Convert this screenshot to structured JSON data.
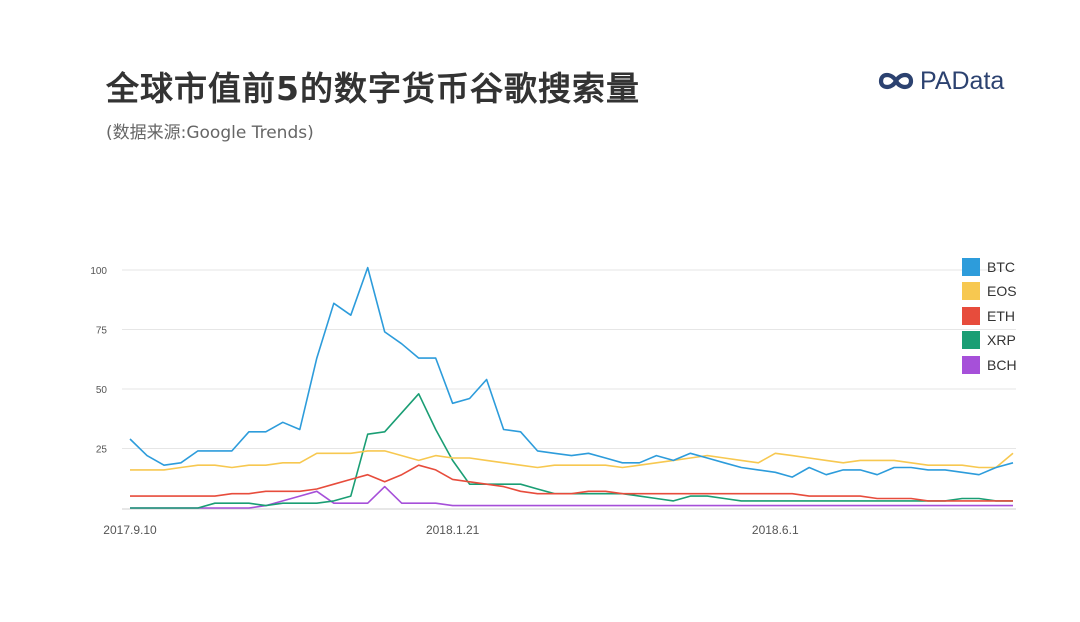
{
  "title": "全球市值前5的数字货币谷歌搜索量",
  "subtitle": "(数据来源:Google Trends)",
  "brand": {
    "name": "PAData",
    "color": "#2c4270"
  },
  "chart_data": {
    "type": "line",
    "title": "",
    "xlabel": "",
    "ylabel": "",
    "ylim": [
      0,
      100
    ],
    "yticks": [
      25,
      50,
      75,
      100
    ],
    "xtick_labels": [
      {
        "label": "2017.9.10",
        "index": 0
      },
      {
        "label": "2018.1.21",
        "index": 19
      },
      {
        "label": "2018.6.1",
        "index": 38
      }
    ],
    "grid": true,
    "legend_position": "right",
    "series": [
      {
        "name": "BTC",
        "color": "#2d9cdb",
        "values": [
          29,
          22,
          18,
          19,
          24,
          24,
          24,
          32,
          32,
          36,
          33,
          63,
          86,
          81,
          101,
          74,
          69,
          63,
          63,
          44,
          46,
          54,
          33,
          32,
          24,
          23,
          22,
          23,
          21,
          19,
          19,
          22,
          20,
          23,
          21,
          19,
          17,
          16,
          15,
          13,
          17,
          14,
          16,
          16,
          14,
          17,
          17,
          16,
          16,
          15,
          14,
          17,
          19
        ]
      },
      {
        "name": "EOS",
        "color": "#f7c850",
        "values": [
          16,
          16,
          16,
          17,
          18,
          18,
          17,
          18,
          18,
          19,
          19,
          23,
          23,
          23,
          24,
          24,
          22,
          20,
          22,
          21,
          21,
          20,
          19,
          18,
          17,
          18,
          18,
          18,
          18,
          17,
          18,
          19,
          20,
          21,
          22,
          21,
          20,
          19,
          23,
          22,
          21,
          20,
          19,
          20,
          20,
          20,
          19,
          18,
          18,
          18,
          17,
          17,
          23
        ]
      },
      {
        "name": "ETH",
        "color": "#e74c3c",
        "values": [
          5,
          5,
          5,
          5,
          5,
          5,
          6,
          6,
          7,
          7,
          7,
          8,
          10,
          12,
          14,
          11,
          14,
          18,
          16,
          12,
          11,
          10,
          9,
          7,
          6,
          6,
          6,
          7,
          7,
          6,
          6,
          6,
          6,
          6,
          6,
          6,
          6,
          6,
          6,
          6,
          5,
          5,
          5,
          5,
          4,
          4,
          4,
          3,
          3,
          3,
          3,
          3,
          3
        ]
      },
      {
        "name": "XRP",
        "color": "#1a9e74",
        "values": [
          0,
          0,
          0,
          0,
          0,
          2,
          2,
          2,
          1,
          2,
          2,
          2,
          3,
          5,
          31,
          32,
          40,
          48,
          33,
          20,
          10,
          10,
          10,
          10,
          8,
          6,
          6,
          6,
          6,
          6,
          5,
          4,
          3,
          5,
          5,
          4,
          3,
          3,
          3,
          3,
          3,
          3,
          3,
          3,
          3,
          3,
          3,
          3,
          3,
          4,
          4,
          3,
          3
        ]
      },
      {
        "name": "BCH",
        "color": "#a650d9",
        "values": [
          0,
          0,
          0,
          0,
          0,
          0,
          0,
          0,
          1,
          3,
          5,
          7,
          2,
          2,
          2,
          9,
          2,
          2,
          2,
          1,
          1,
          1,
          1,
          1,
          1,
          1,
          1,
          1,
          1,
          1,
          1,
          1,
          1,
          1,
          1,
          1,
          1,
          1,
          1,
          1,
          1,
          1,
          1,
          1,
          1,
          1,
          1,
          1,
          1,
          1,
          1,
          1,
          1
        ]
      }
    ]
  }
}
